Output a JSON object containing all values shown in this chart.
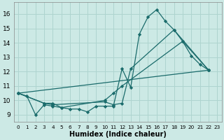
{
  "title": "",
  "xlabel": "Humidex (Indice chaleur)",
  "ylabel": "",
  "xlim": [
    -0.5,
    23.5
  ],
  "ylim": [
    8.5,
    16.8
  ],
  "xticks": [
    0,
    1,
    2,
    3,
    4,
    5,
    6,
    7,
    8,
    9,
    10,
    11,
    12,
    13,
    14,
    15,
    16,
    17,
    18,
    19,
    20,
    21,
    22,
    23
  ],
  "yticks": [
    9,
    10,
    11,
    12,
    13,
    14,
    15,
    16
  ],
  "background_color": "#cce9e5",
  "grid_color": "#aed4cf",
  "line_color": "#1a6b6b",
  "series": [
    {
      "x": [
        0,
        1,
        2,
        3,
        4,
        5,
        6,
        7,
        8,
        9,
        10,
        11,
        12,
        13,
        14,
        15,
        16,
        17,
        18,
        19,
        20,
        21,
        22
      ],
      "y": [
        10.5,
        10.3,
        9.0,
        9.7,
        9.6,
        9.5,
        9.4,
        9.4,
        9.2,
        9.6,
        9.6,
        9.6,
        12.2,
        10.9,
        14.6,
        15.8,
        16.3,
        15.5,
        14.9,
        14.1,
        13.1,
        12.5,
        12.1
      ]
    },
    {
      "x": [
        0,
        3,
        4,
        10,
        11,
        12,
        13,
        18,
        22
      ],
      "y": [
        10.5,
        9.8,
        9.7,
        9.9,
        9.7,
        9.8,
        12.2,
        14.9,
        12.1
      ]
    },
    {
      "x": [
        0,
        3,
        4,
        5,
        10,
        11,
        12,
        19,
        22
      ],
      "y": [
        10.5,
        9.8,
        9.8,
        9.5,
        10.0,
        10.5,
        11.0,
        14.1,
        12.1
      ]
    },
    {
      "x": [
        0,
        22
      ],
      "y": [
        10.5,
        12.1
      ]
    }
  ]
}
